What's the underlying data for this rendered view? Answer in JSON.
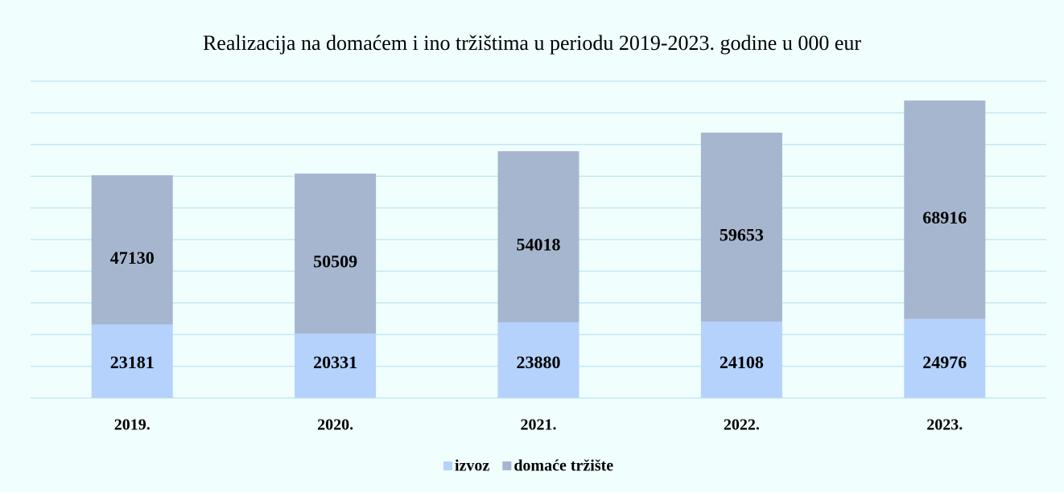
{
  "chart_data": {
    "type": "stacked_bar",
    "title": "Realizacija na domaćem i ino tržištima u periodu 2019-2023. godine u 000 eur",
    "categories": [
      "2019.",
      "2020.",
      "2021.",
      "2022.",
      "2023."
    ],
    "series": [
      {
        "name": "izvoz",
        "color": "#b4d2fc",
        "values": [
          23181,
          20331,
          23880,
          24108,
          24976
        ]
      },
      {
        "name": "domaće tržište",
        "color": "#a6b6cf",
        "values": [
          47130,
          50509,
          54018,
          59653,
          68916
        ]
      }
    ],
    "ylim": [
      0,
      100000
    ],
    "yticks": [
      0,
      10000,
      20000,
      30000,
      40000,
      50000,
      60000,
      70000,
      80000,
      90000,
      100000
    ],
    "grid": true,
    "legend": "bottom"
  }
}
